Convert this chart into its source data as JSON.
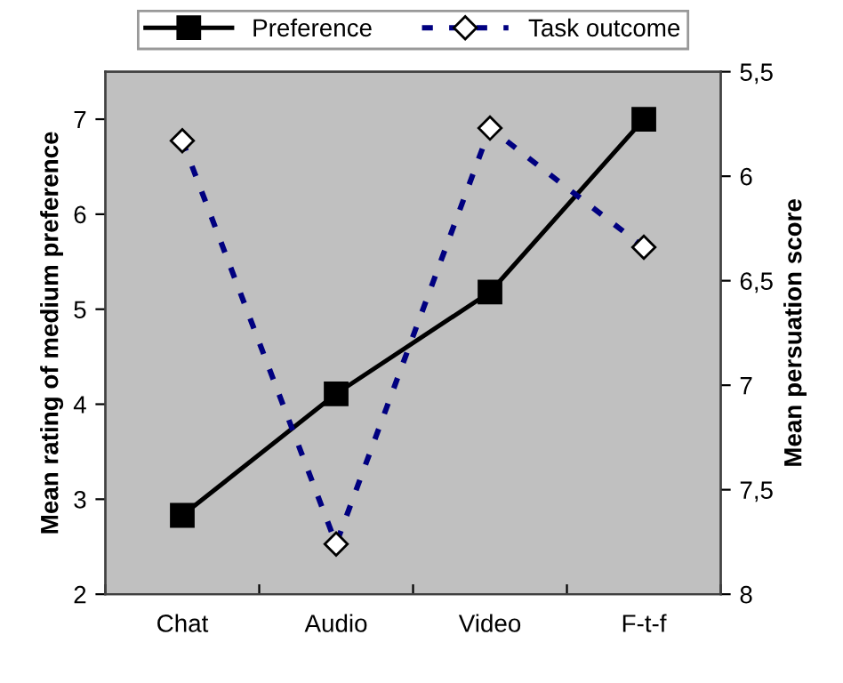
{
  "chart_data": {
    "type": "line",
    "ylabel": "Mean rating of medium preference",
    "y2label": "Mean persuation score",
    "categories": [
      "Chat",
      "Audio",
      "Video",
      "F-t-f"
    ],
    "series": [
      {
        "name": "Preference",
        "color": "#000000",
        "values": [
          2.83,
          4.11,
          5.18,
          7.0
        ],
        "marker": "square",
        "line_style": "solid"
      },
      {
        "name": "Task outcome",
        "color": "#000080",
        "values": [
          5.83,
          7.76,
          5.77,
          6.34
        ],
        "axis": "y2",
        "marker": "diamond",
        "line_style": "dashed"
      }
    ],
    "ylim": [
      2,
      7.5
    ],
    "yticks": [
      2,
      3,
      4,
      5,
      6,
      7
    ],
    "y2lim": [
      8,
      5.5
    ],
    "y2ticks": [
      {
        "value": 5.5,
        "label": "5,5"
      },
      6,
      {
        "value": 6.5,
        "label": "6,5"
      },
      7,
      {
        "value": 7.5,
        "label": "7,5"
      },
      8
    ],
    "legend": "top",
    "grid": false
  }
}
